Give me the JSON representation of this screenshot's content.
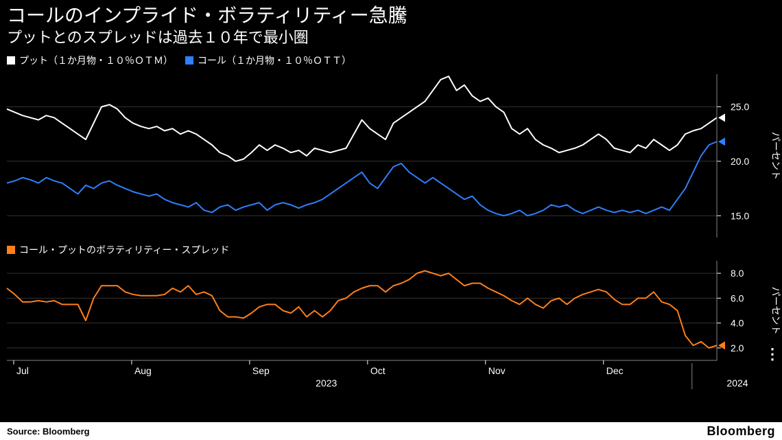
{
  "title": "コールのインプライド・ボラティリティー急騰",
  "subtitle": "プットとのスプレッドは過去１０年で最小圏",
  "source_label": "Source: Bloomberg",
  "brand": "Bloomberg",
  "colors": {
    "background": "#000000",
    "grid": "#333333",
    "axis": "#999999",
    "text": "#ffffff",
    "put": "#ffffff",
    "call": "#2f7fff",
    "spread": "#ff7f1a"
  },
  "legend_top": [
    {
      "label": "プット（１か月物・１０％ＯＴＭ）",
      "color": "#ffffff"
    },
    {
      "label": "コール（１か月物・１０％ＯＴＴ）",
      "color": "#2f7fff"
    }
  ],
  "legend_bottom": [
    {
      "label": "コール・プットのボラティリティー・スプレッド",
      "color": "#ff7f1a"
    }
  ],
  "xaxis": {
    "ticks": [
      "Jul",
      "Aug",
      "Sep",
      "Oct",
      "Nov",
      "Dec"
    ],
    "year_left": "2023",
    "year_right": "2024"
  },
  "top_chart": {
    "type": "line",
    "ylim": [
      13,
      28
    ],
    "yticks": [
      15.0,
      20.0,
      25.0
    ],
    "ylabel": "パーセント",
    "series": {
      "put": [
        24.8,
        24.5,
        24.2,
        24.0,
        23.8,
        24.2,
        24.0,
        23.5,
        23.0,
        22.5,
        22.0,
        23.5,
        25.0,
        25.2,
        24.8,
        24.0,
        23.5,
        23.2,
        23.0,
        23.2,
        22.8,
        23.0,
        22.5,
        22.8,
        22.5,
        22.0,
        21.5,
        20.8,
        20.5,
        20.0,
        20.2,
        20.8,
        21.5,
        21.0,
        21.5,
        21.2,
        20.8,
        21.0,
        20.5,
        21.2,
        21.0,
        20.8,
        21.0,
        21.2,
        22.5,
        23.8,
        23.0,
        22.5,
        22.0,
        23.5,
        24.0,
        24.5,
        25.0,
        25.5,
        26.5,
        27.5,
        27.8,
        26.5,
        27.0,
        26.0,
        25.5,
        25.8,
        25.0,
        24.5,
        23.0,
        22.5,
        23.0,
        22.0,
        21.5,
        21.2,
        20.8,
        21.0,
        21.2,
        21.5,
        22.0,
        22.5,
        22.0,
        21.2,
        21.0,
        20.8,
        21.5,
        21.2,
        22.0,
        21.5,
        21.0,
        21.5,
        22.5,
        22.8,
        23.0,
        23.5,
        24.0
      ],
      "call": [
        18.0,
        18.2,
        18.5,
        18.3,
        18.0,
        18.5,
        18.2,
        18.0,
        17.5,
        17.0,
        17.8,
        17.5,
        18.0,
        18.2,
        17.8,
        17.5,
        17.2,
        17.0,
        16.8,
        17.0,
        16.5,
        16.2,
        16.0,
        15.8,
        16.2,
        15.5,
        15.3,
        15.8,
        16.0,
        15.5,
        15.8,
        16.0,
        16.2,
        15.5,
        16.0,
        16.2,
        16.0,
        15.7,
        16.0,
        16.2,
        16.5,
        17.0,
        17.5,
        18.0,
        18.5,
        19.0,
        18.0,
        17.5,
        18.5,
        19.5,
        19.8,
        19.0,
        18.5,
        18.0,
        18.5,
        18.0,
        17.5,
        17.0,
        16.5,
        16.8,
        16.0,
        15.5,
        15.2,
        15.0,
        15.2,
        15.5,
        15.0,
        15.2,
        15.5,
        16.0,
        15.8,
        16.0,
        15.5,
        15.2,
        15.5,
        15.8,
        15.5,
        15.3,
        15.5,
        15.3,
        15.5,
        15.2,
        15.5,
        15.8,
        15.5,
        16.5,
        17.5,
        19.0,
        20.5,
        21.5,
        21.8
      ]
    }
  },
  "bottom_chart": {
    "type": "line",
    "ylim": [
      1,
      9
    ],
    "yticks": [
      2.0,
      4.0,
      6.0,
      8.0
    ],
    "ylabel": "パーセント",
    "series": {
      "spread": [
        6.8,
        6.3,
        5.7,
        5.7,
        5.8,
        5.7,
        5.8,
        5.5,
        5.5,
        5.5,
        4.2,
        6.0,
        7.0,
        7.0,
        7.0,
        6.5,
        6.3,
        6.2,
        6.2,
        6.2,
        6.3,
        6.8,
        6.5,
        7.0,
        6.3,
        6.5,
        6.2,
        5.0,
        4.5,
        4.5,
        4.4,
        4.8,
        5.3,
        5.5,
        5.5,
        5.0,
        4.8,
        5.3,
        4.5,
        5.0,
        4.5,
        5.0,
        5.8,
        6.0,
        6.5,
        6.8,
        7.0,
        7.0,
        6.5,
        7.0,
        7.2,
        7.5,
        8.0,
        8.2,
        8.0,
        7.8,
        8.0,
        7.5,
        7.0,
        7.2,
        7.2,
        6.8,
        6.5,
        6.2,
        5.8,
        5.5,
        6.0,
        5.5,
        5.2,
        5.8,
        6.0,
        5.5,
        6.0,
        6.3,
        6.5,
        6.7,
        6.5,
        5.9,
        5.5,
        5.5,
        6.0,
        6.0,
        6.5,
        5.7,
        5.5,
        5.0,
        3.0,
        2.2,
        2.5,
        2.0,
        2.2
      ]
    }
  }
}
